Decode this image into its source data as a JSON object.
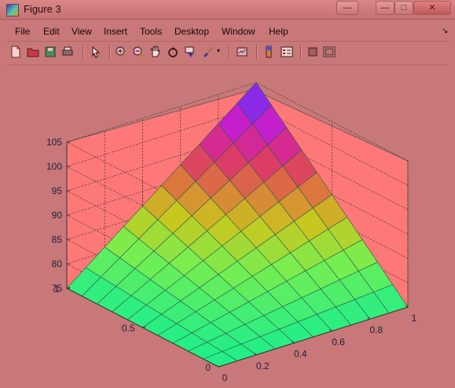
{
  "window": {
    "title": "Figure 3",
    "min_glyph": "—",
    "max_glyph": "□",
    "close_glyph": "✕"
  },
  "menu": {
    "items": [
      "File",
      "Edit",
      "View",
      "Insert",
      "Tools",
      "Desktop",
      "Window",
      "Help"
    ],
    "corner": "↘"
  },
  "toolbar": {
    "icons": [
      "new-figure-icon",
      "open-file-icon",
      "save-icon",
      "print-icon",
      "pointer-icon",
      "zoom-in-icon",
      "zoom-out-icon",
      "pan-icon",
      "rotate-3d-icon",
      "data-cursor-icon",
      "brush-icon",
      "link-plot-icon",
      "colorbar-icon",
      "legend-icon",
      "hide-plot-tools-icon",
      "show-plot-tools-icon"
    ]
  },
  "colors": {
    "background": "#c87878",
    "pane": "#ff7878",
    "grid": "#3a3a3a",
    "tick_text": "#202040",
    "colormap_low": "#22ee88",
    "colormap_high": "#5b5bf0"
  },
  "chart_data": {
    "type": "surface",
    "title": "",
    "xlabel": "",
    "ylabel": "",
    "zlabel": "",
    "x_ticks": [
      "0",
      "0.2",
      "0.4",
      "0.6",
      "0.8",
      "1"
    ],
    "y_ticks": [
      "0",
      "0.5",
      "1"
    ],
    "z_ticks": [
      "75",
      "80",
      "85",
      "90",
      "95",
      "100",
      "105"
    ],
    "xlim": [
      0,
      1
    ],
    "ylim": [
      0,
      1
    ],
    "zlim": [
      75,
      105
    ],
    "grid": true,
    "x": [
      0,
      0.1,
      0.2,
      0.3,
      0.4,
      0.5,
      0.6,
      0.7,
      0.8,
      0.9,
      1
    ],
    "y": [
      0,
      0.1,
      0.2,
      0.3,
      0.4,
      0.5,
      0.6,
      0.7,
      0.8,
      0.9,
      1
    ],
    "z_formula": "z = 75 + 30 * x * y",
    "z_corners": {
      "x0_y0": 75,
      "x1_y0": 75,
      "x0_y1": 75,
      "x1_y1": 105
    },
    "colormap": "hsv-like: green (low) → yellow → red/magenta → blue (high)"
  }
}
